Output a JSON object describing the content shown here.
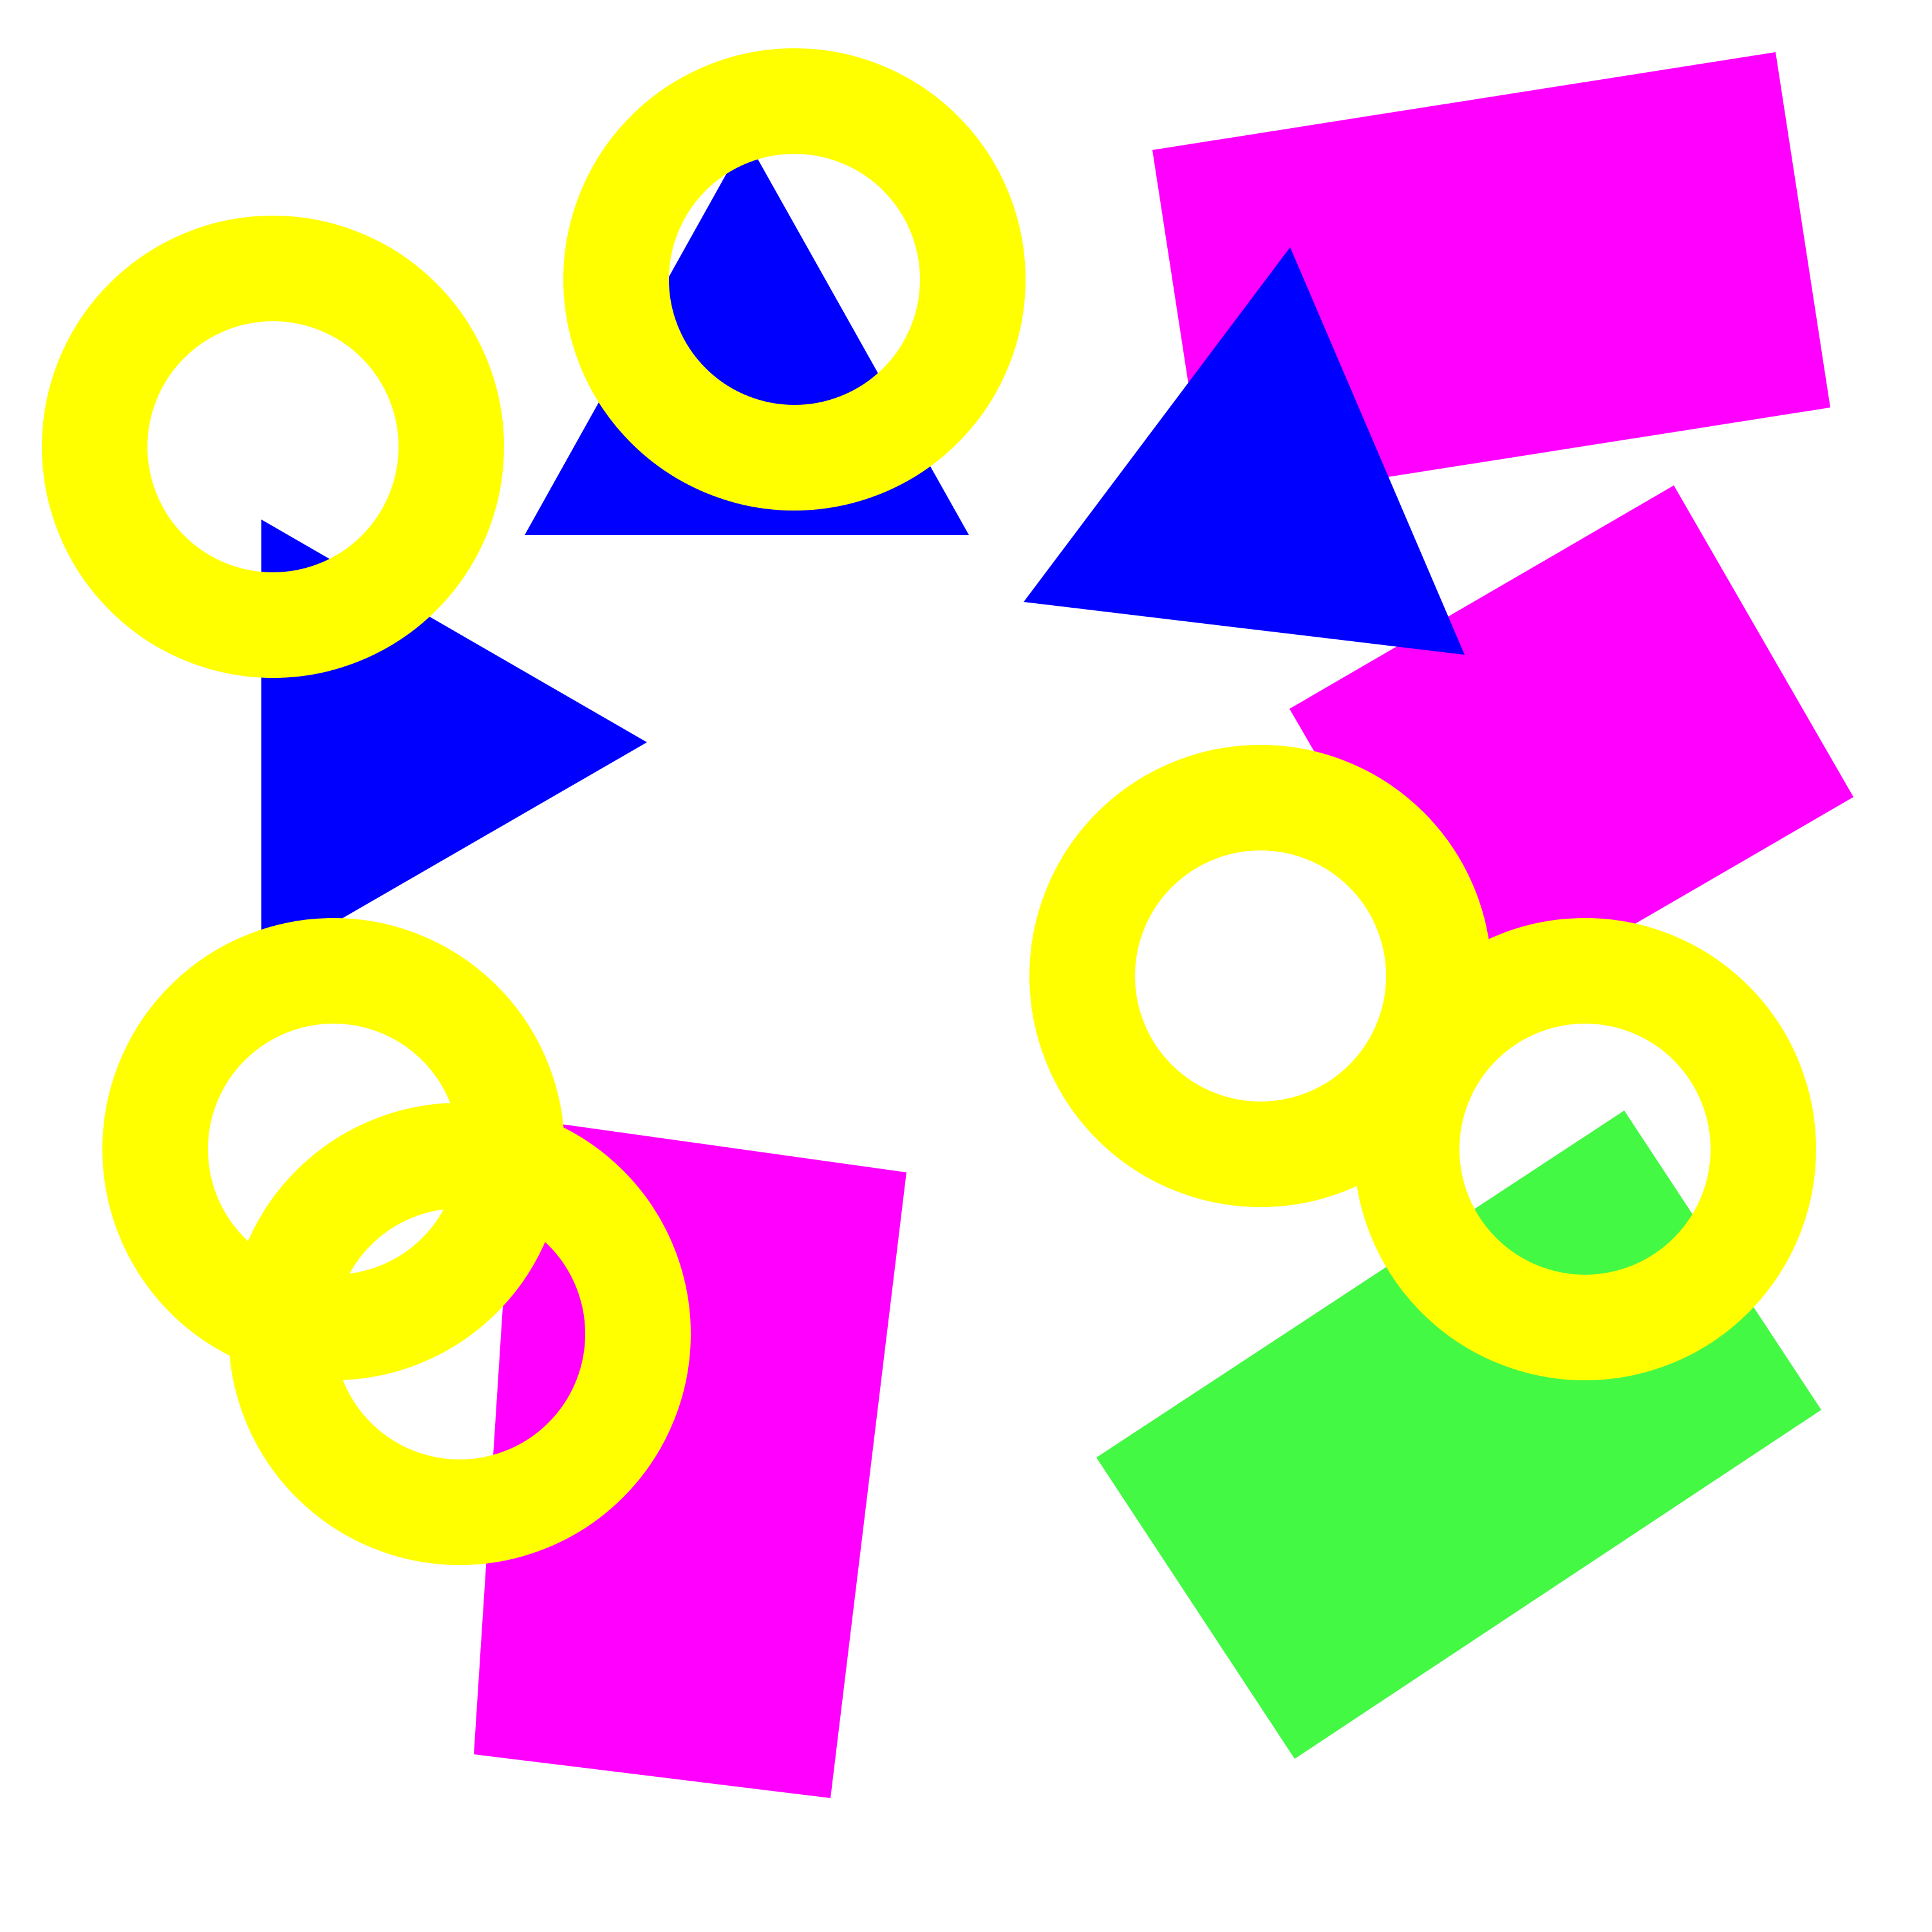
{
  "palette": {
    "background": "#ffffff",
    "magenta": "#ff00ff",
    "blue": "#0000ff",
    "yellow": "#ffff00",
    "green": "#44f944"
  },
  "shapes": [
    {
      "id": "magenta-rectangle-top-right",
      "kind": "rectangle",
      "color": "magenta"
    },
    {
      "id": "magenta-rectangle-middle-right",
      "kind": "rectangle",
      "color": "magenta"
    },
    {
      "id": "magenta-rectangle-bottom-left",
      "kind": "rectangle",
      "color": "magenta"
    },
    {
      "id": "green-rectangle-bottom-right",
      "kind": "rectangle",
      "color": "green"
    },
    {
      "id": "blue-triangle-top-center",
      "kind": "triangle",
      "color": "blue"
    },
    {
      "id": "blue-triangle-left",
      "kind": "triangle",
      "color": "blue"
    },
    {
      "id": "blue-triangle-right",
      "kind": "triangle",
      "color": "blue"
    },
    {
      "id": "yellow-ring-top-left",
      "kind": "ring",
      "color": "yellow"
    },
    {
      "id": "yellow-ring-top-center",
      "kind": "ring",
      "color": "yellow"
    },
    {
      "id": "yellow-ring-bottom-left-upper",
      "kind": "ring",
      "color": "yellow"
    },
    {
      "id": "yellow-ring-bottom-left-lower",
      "kind": "ring",
      "color": "yellow"
    },
    {
      "id": "yellow-ring-center-right",
      "kind": "ring",
      "color": "yellow"
    },
    {
      "id": "yellow-ring-right",
      "kind": "ring",
      "color": "yellow"
    }
  ]
}
